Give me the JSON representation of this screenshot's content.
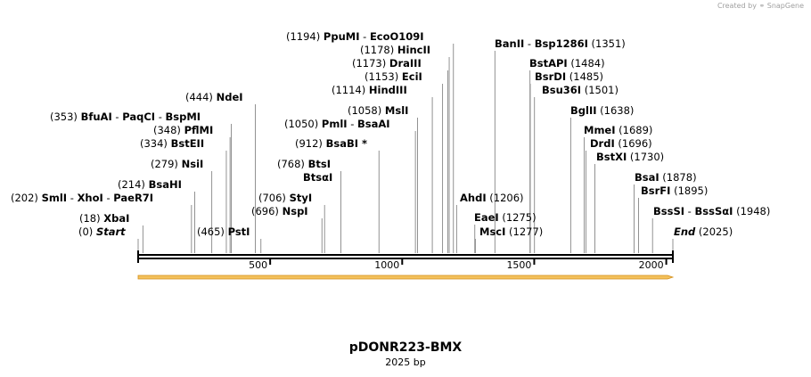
{
  "header": {
    "credit_prefix": "Created by",
    "credit_brand": "SnapGene",
    "brand_color": "#a0a0a0"
  },
  "map": {
    "title": "pDONR223-BMX",
    "subtitle": "2025 bp",
    "length": 2025,
    "axis_ticks": [
      500,
      1000,
      1500,
      2000
    ],
    "feature_color": "#f3c15b",
    "feature_edge_color": "#d4901c",
    "sites": [
      {
        "pos": "(0)",
        "parts": [
          "Start"
        ],
        "italic": true,
        "bp": 0
      },
      {
        "pos": "(18)",
        "parts": [
          "XbaI"
        ],
        "bp": 18
      },
      {
        "pos": "(202)",
        "parts": [
          "SmlI",
          "XhoI",
          "PaeR7I"
        ],
        "bp": 202
      },
      {
        "pos": "(214)",
        "parts": [
          "BsaHI"
        ],
        "bp": 214
      },
      {
        "pos": "(279)",
        "parts": [
          "NsiI"
        ],
        "bp": 279
      },
      {
        "pos": "(334)",
        "parts": [
          "BstEII"
        ],
        "bp": 334
      },
      {
        "pos": "(348)",
        "parts": [
          "PflMI"
        ],
        "bp": 348
      },
      {
        "pos": "(353)",
        "parts": [
          "BfuAI",
          "PaqCI",
          "BspMI"
        ],
        "bp": 353
      },
      {
        "pos": "(444)",
        "parts": [
          "NdeI"
        ],
        "bp": 444
      },
      {
        "pos": "(465)",
        "parts": [
          "PstI"
        ],
        "bp": 465
      },
      {
        "pos": "(696)",
        "parts": [
          "NspI"
        ],
        "bp": 696
      },
      {
        "pos": "(706)",
        "parts": [
          "StyI"
        ],
        "bp": 706
      },
      {
        "pos": "",
        "parts": [
          "BtsαI"
        ],
        "bp": 768
      },
      {
        "pos": "(768)",
        "parts": [
          "BtsI"
        ],
        "bp": 768
      },
      {
        "pos": "(912)",
        "parts": [
          "BsaBI *"
        ],
        "bp": 912
      },
      {
        "pos": "(1050)",
        "parts": [
          "PmlI",
          "BsaAI"
        ],
        "bp": 1050
      },
      {
        "pos": "(1058)",
        "parts": [
          "MslI"
        ],
        "bp": 1058
      },
      {
        "pos": "(1114)",
        "parts": [
          "HindIII"
        ],
        "bp": 1114
      },
      {
        "pos": "(1153)",
        "parts": [
          "EciI"
        ],
        "bp": 1153
      },
      {
        "pos": "(1173)",
        "parts": [
          "DraIII"
        ],
        "bp": 1173
      },
      {
        "pos": "(1178)",
        "parts": [
          "HincII"
        ],
        "bp": 1178
      },
      {
        "pos": "(1194)",
        "parts": [
          "PpuMI",
          "EcoO109I"
        ],
        "bp": 1194
      },
      {
        "pos": "(1206)",
        "parts": [
          "AhdI"
        ],
        "bp": 1206
      },
      {
        "pos": "(1275)",
        "parts": [
          "EaeI"
        ],
        "bp": 1275
      },
      {
        "pos": "(1277)",
        "parts": [
          "MscI"
        ],
        "bp": 1277
      },
      {
        "pos": "(1351)",
        "parts": [
          "BanII",
          "Bsp1286I"
        ],
        "bp": 1351
      },
      {
        "pos": "(1484)",
        "parts": [
          "BstAPI"
        ],
        "bp": 1484
      },
      {
        "pos": "(1485)",
        "parts": [
          "BsrDI"
        ],
        "bp": 1485
      },
      {
        "pos": "(1501)",
        "parts": [
          "Bsu36I"
        ],
        "bp": 1501
      },
      {
        "pos": "(1638)",
        "parts": [
          "BglII"
        ],
        "bp": 1638
      },
      {
        "pos": "(1689)",
        "parts": [
          "MmeI"
        ],
        "bp": 1689
      },
      {
        "pos": "(1696)",
        "parts": [
          "DrdI"
        ],
        "bp": 1696
      },
      {
        "pos": "(1730)",
        "parts": [
          "BstXI"
        ],
        "bp": 1730
      },
      {
        "pos": "(1878)",
        "parts": [
          "BsaI"
        ],
        "bp": 1878
      },
      {
        "pos": "(1895)",
        "parts": [
          "BsrFI"
        ],
        "bp": 1895
      },
      {
        "pos": "(1948)",
        "parts": [
          "BssSI",
          "BssSαI"
        ],
        "bp": 1948
      },
      {
        "pos": "(2025)",
        "parts": [
          "End"
        ],
        "italic": true,
        "bp": 2025
      }
    ]
  }
}
